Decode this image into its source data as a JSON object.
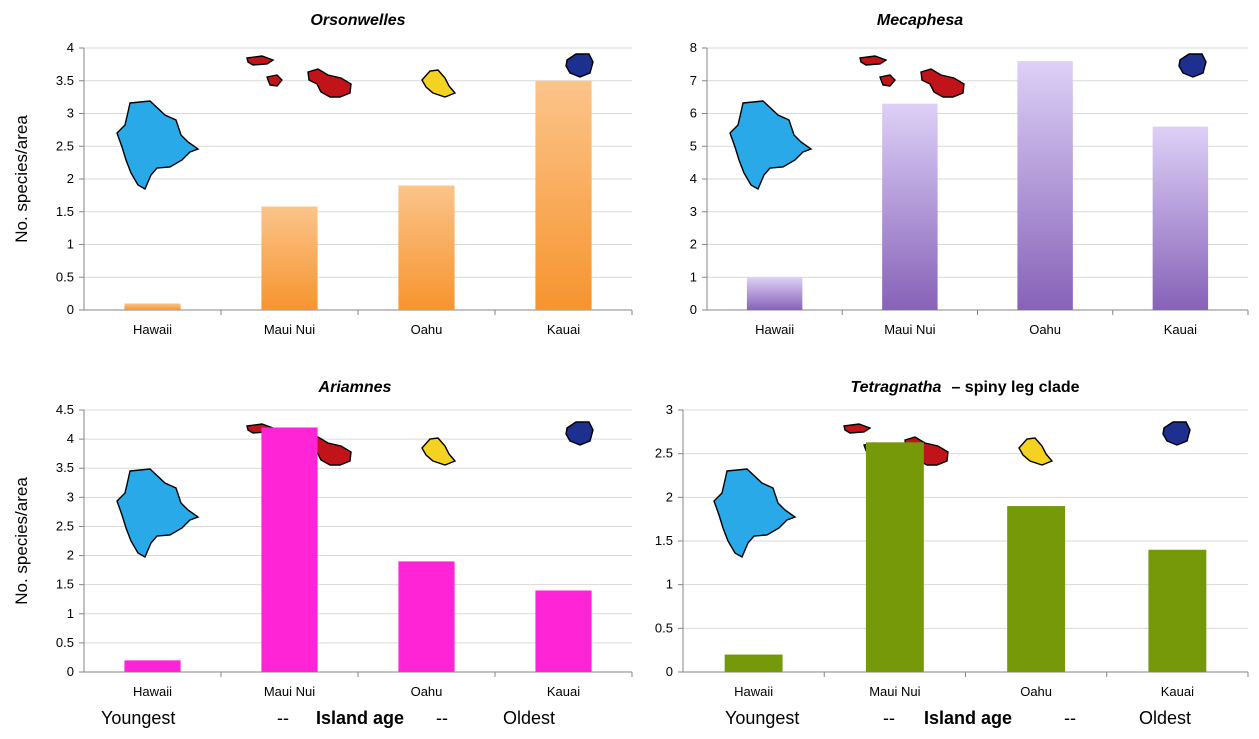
{
  "colors": {
    "hawaii_island": "#29a9e8",
    "maui_nui_island": "#c0141a",
    "oahu_island": "#f3d221",
    "kauai_island": "#1d2f8f"
  },
  "island_icons": [
    "hawaii-island-icon",
    "maui-nui-islands-icon",
    "oahu-island-icon",
    "kauai-island-icon"
  ],
  "y_axis_label": "No. species/area",
  "age_axis": {
    "left": "Youngest",
    "sep1": "--",
    "middle": "Island age",
    "sep2": "--",
    "right": "Oldest"
  },
  "chart_data": [
    {
      "type": "bar",
      "title": "Orsonwelles",
      "title_suffix": "",
      "categories": [
        "Hawaii",
        "Maui Nui",
        "Oahu",
        "Kauai"
      ],
      "values": [
        0.1,
        1.58,
        1.9,
        3.5
      ],
      "ylim": [
        0,
        4
      ],
      "yticks": [
        "0",
        "0.5",
        "1",
        "1.5",
        "2",
        "2.5",
        "3",
        "3.5",
        "4"
      ],
      "color": "#f7942e",
      "color_light": "#fbc48a",
      "ylabel": "No. species/area",
      "grid": true
    },
    {
      "type": "bar",
      "title": "Mecaphesa",
      "title_suffix": "",
      "categories": [
        "Hawaii",
        "Maui Nui",
        "Oahu",
        "Kauai"
      ],
      "values": [
        1.0,
        6.3,
        7.6,
        5.6
      ],
      "ylim": [
        0,
        8
      ],
      "yticks": [
        "0",
        "1",
        "2",
        "3",
        "4",
        "5",
        "6",
        "7",
        "8"
      ],
      "color": "#8762b8",
      "color_light": "#ddd0f7",
      "ylabel": "",
      "grid": true
    },
    {
      "type": "bar",
      "title": "Ariamnes",
      "title_suffix": "",
      "categories": [
        "Hawaii",
        "Maui Nui",
        "Oahu",
        "Kauai"
      ],
      "values": [
        0.2,
        4.2,
        1.9,
        1.4
      ],
      "ylim": [
        0,
        4.5
      ],
      "yticks": [
        "0",
        "0.5",
        "1",
        "1.5",
        "2",
        "2.5",
        "3",
        "3.5",
        "4",
        "4.5"
      ],
      "color": "#ff24d6",
      "color_light": "#ff24d6",
      "ylabel": "No. species/area",
      "grid": true
    },
    {
      "type": "bar",
      "title": "Tetragnatha",
      "title_suffix": "–  spiny leg clade",
      "categories": [
        "Hawaii",
        "Maui Nui",
        "Oahu",
        "Kauai"
      ],
      "values": [
        0.2,
        2.63,
        1.9,
        1.4
      ],
      "ylim": [
        0,
        3
      ],
      "yticks": [
        "0",
        "0.5",
        "1",
        "1.5",
        "2",
        "2.5",
        "3"
      ],
      "color": "#76990a",
      "color_light": "#76990a",
      "ylabel": "",
      "grid": true
    }
  ]
}
